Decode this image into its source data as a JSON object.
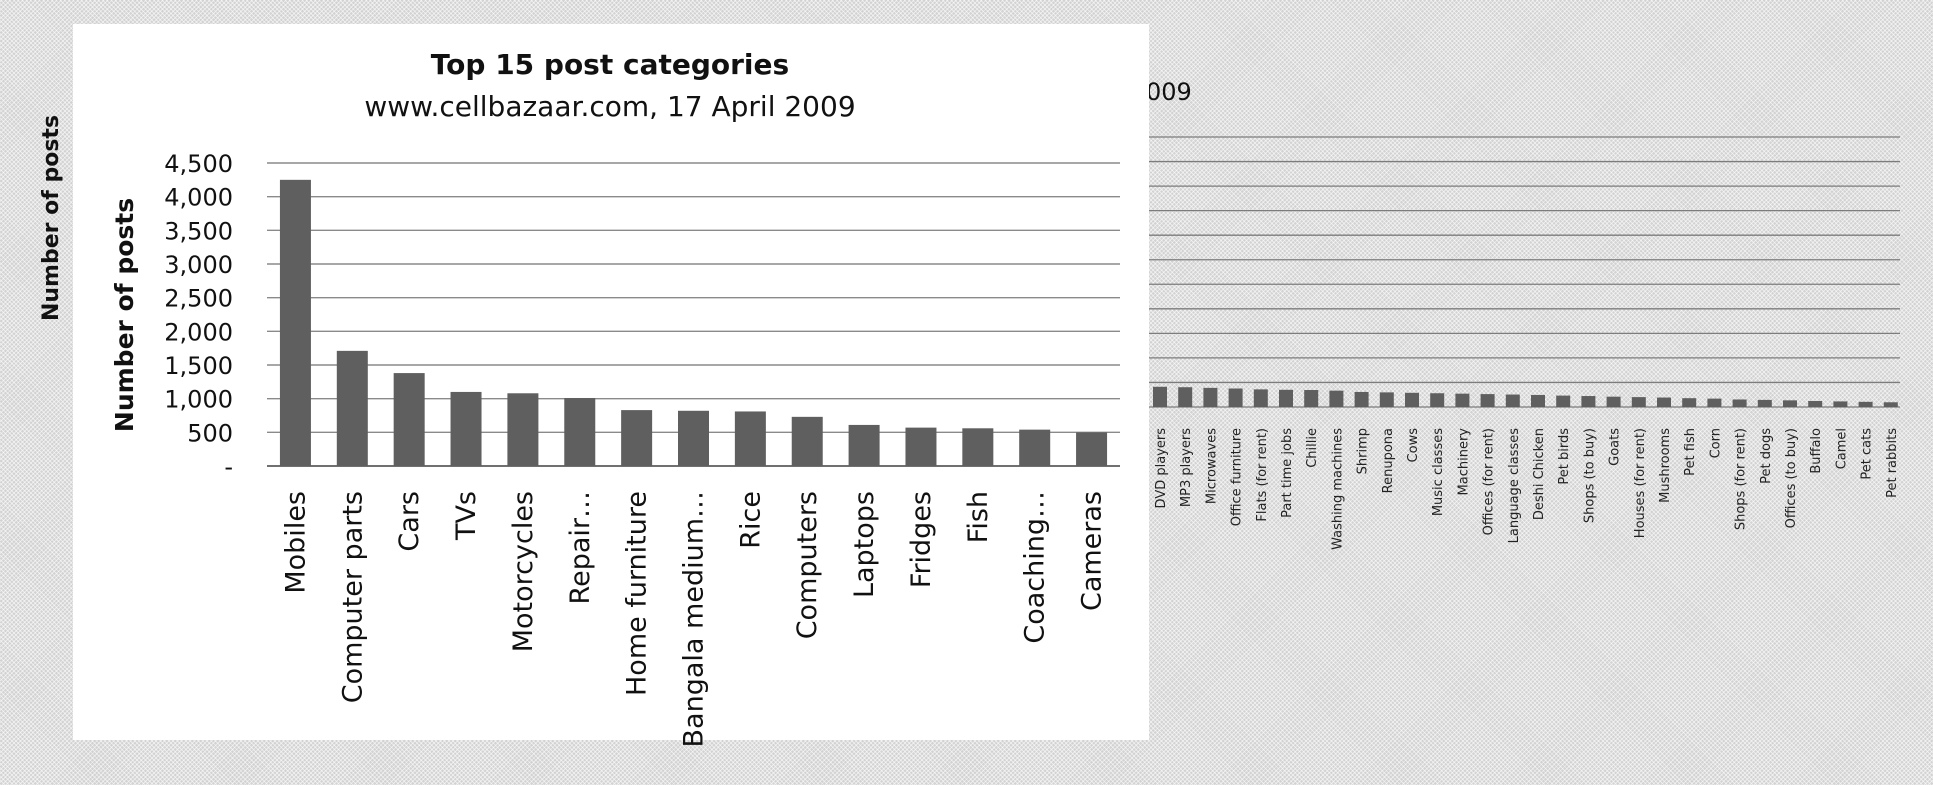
{
  "chart_data": [
    {
      "type": "bar",
      "title": "Top 15 post  categories",
      "subtitle": "www.cellbazaar.com, 17 April 2009",
      "xlabel": "",
      "ylabel": "Number of posts",
      "ylim": [
        0,
        4500
      ],
      "yticks": [
        0,
        500,
        1000,
        1500,
        2000,
        2500,
        3000,
        3500,
        4000,
        4500
      ],
      "ytick_labels": [
        "-",
        "500",
        "1,000",
        "1,500",
        "2,000",
        "2,500",
        "3,000",
        "3,500",
        "4,000",
        "4,500"
      ],
      "grid": true,
      "bar_color": "#5f5f5f",
      "categories": [
        "Mobiles",
        "Computer parts",
        "Cars",
        "TVs",
        "Motorcycles",
        "Repair…",
        "Home furniture",
        "Bangala medium…",
        "Rice",
        "Computers",
        "Laptops",
        "Fridges",
        "Fish",
        "Coaching…",
        "Cameras"
      ],
      "values": [
        4250,
        1710,
        1380,
        1100,
        1080,
        1010,
        830,
        820,
        810,
        730,
        610,
        570,
        560,
        540,
        500
      ]
    },
    {
      "type": "bar",
      "title": "",
      "subtitle": "009",
      "xlabel": "",
      "ylabel": "Number of posts",
      "grid": true,
      "bar_color": "#5f5f5f",
      "categories": [
        "DVD players",
        "MP3 players",
        "Microwaves",
        "Office furniture",
        "Flats (for rent)",
        "Part time jobs",
        "Chillie",
        "Washing machines",
        "Shrimp",
        "Renupona",
        "Cows",
        "Music classes",
        "Machinery",
        "Offices (for rent)",
        "Language classes",
        "Deshi Chicken",
        "Pet birds",
        "Shops (to buy)",
        "Goats",
        "Houses (for rent)",
        "Mushrooms",
        "Pet fish",
        "Corn",
        "Shops (for rent)",
        "Pet dogs",
        "Offices (to buy)",
        "Buffalo",
        "Camel",
        "Pet cats",
        "Pet rabbits"
      ],
      "values": [
        470,
        460,
        445,
        430,
        410,
        400,
        395,
        380,
        350,
        340,
        330,
        320,
        310,
        300,
        290,
        280,
        265,
        255,
        240,
        230,
        220,
        205,
        195,
        175,
        165,
        155,
        140,
        130,
        120,
        110
      ]
    }
  ]
}
